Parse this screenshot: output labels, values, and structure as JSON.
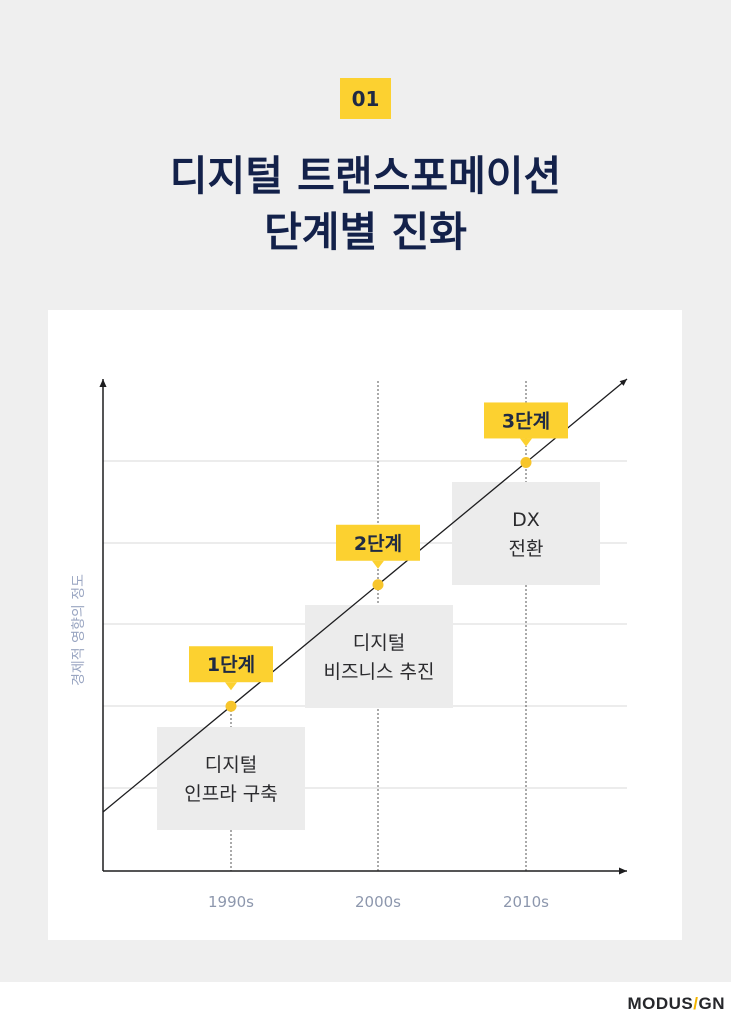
{
  "header": {
    "badge": "01",
    "title_line1": "디지털 트랜스포메이션",
    "title_line2": "단계별 진화"
  },
  "chart_data": {
    "type": "diagram",
    "ylabel": "경제적 영향의 정도",
    "x_ticks": [
      "1990s",
      "2000s",
      "2010s"
    ],
    "stages": [
      {
        "badge": "1단계",
        "label": [
          "디지털",
          "인프라 구축"
        ],
        "x": "1990s"
      },
      {
        "badge": "2단계",
        "label": [
          "디지털",
          "비즈니스 추진"
        ],
        "x": "2000s"
      },
      {
        "badge": "3단계",
        "label": [
          "DX",
          "전환"
        ],
        "x": "2010s"
      }
    ],
    "grid": true
  },
  "colors": {
    "accent": "#fcd130",
    "title": "#13214a",
    "box": "#ececec",
    "axis_label": "#9aa6c2",
    "stage_dot": "#f7c52b"
  },
  "footer": {
    "logo_left": "MODUS",
    "logo_slash": "/",
    "logo_right": "GN"
  }
}
